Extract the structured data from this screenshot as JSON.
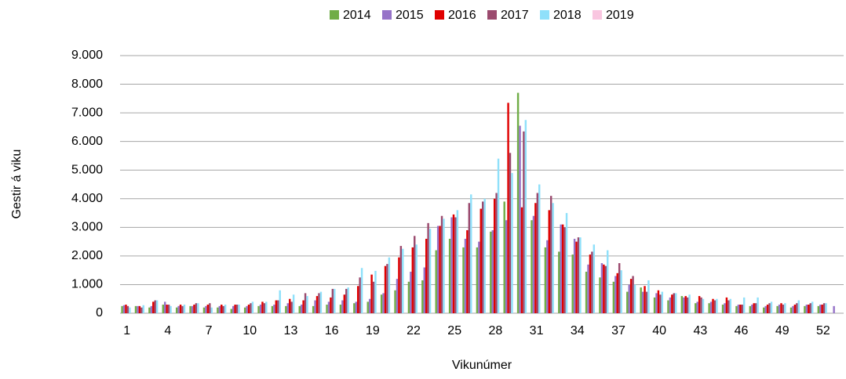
{
  "chart_data": {
    "type": "bar",
    "y_label": "Gestir á viku",
    "x_label": "Vikunúmer",
    "categories": [
      "1",
      null,
      null,
      "4",
      null,
      null,
      "7",
      null,
      null,
      "10",
      null,
      null,
      "13",
      null,
      null,
      "16",
      null,
      null,
      "19",
      null,
      null,
      "22",
      null,
      null,
      "25",
      null,
      null,
      "28",
      null,
      null,
      "31",
      null,
      null,
      "34",
      null,
      null,
      "37",
      null,
      null,
      "40",
      null,
      null,
      "43",
      null,
      null,
      "46",
      null,
      null,
      "49",
      null,
      null,
      "52",
      null
    ],
    "ylim": [
      0,
      9000
    ],
    "yticks": [
      0,
      {
        "value": 1000,
        "label": "1.000"
      },
      {
        "value": 2000,
        "label": "2.000"
      },
      {
        "value": 3000,
        "label": "3.000"
      },
      {
        "value": 4000,
        "label": "4.000"
      },
      {
        "value": 5000,
        "label": "5.000"
      },
      {
        "value": 6000,
        "label": "6.000"
      },
      {
        "value": 7000,
        "label": "7.000"
      },
      {
        "value": 8000,
        "label": "8.000"
      },
      {
        "value": 9000,
        "label": "9.000"
      }
    ],
    "grid": true,
    "legend": "top",
    "series": [
      {
        "name": "2014",
        "color": "#70ad47",
        "values": [
          250,
          250,
          200,
          300,
          200,
          250,
          200,
          200,
          150,
          200,
          250,
          250,
          250,
          250,
          250,
          300,
          300,
          350,
          400,
          650,
          800,
          1100,
          1150,
          2200,
          2600,
          2300,
          2300,
          2850,
          3900,
          7700,
          3250,
          2300,
          2150,
          2050,
          1450,
          1250,
          1100,
          750,
          900,
          550,
          450,
          600,
          350,
          350,
          300,
          250,
          250,
          200,
          250,
          200,
          250,
          250,
          null
        ]
      },
      {
        "name": "2015",
        "color": "#9673c8",
        "values": [
          280,
          250,
          250,
          400,
          250,
          250,
          250,
          250,
          250,
          250,
          300,
          300,
          350,
          300,
          450,
          400,
          450,
          400,
          500,
          700,
          1200,
          1450,
          1600,
          3050,
          3350,
          2600,
          2500,
          2900,
          3250,
          6550,
          3400,
          2550,
          3100,
          2600,
          1700,
          1750,
          1300,
          1000,
          750,
          700,
          550,
          550,
          400,
          400,
          350,
          300,
          300,
          250,
          300,
          250,
          300,
          300,
          250
        ]
      },
      {
        "name": "2016",
        "color": "#e00000",
        "values": [
          300,
          250,
          400,
          300,
          300,
          300,
          300,
          300,
          300,
          300,
          400,
          450,
          500,
          450,
          600,
          550,
          650,
          950,
          1350,
          1650,
          1950,
          2300,
          2600,
          3050,
          3450,
          2900,
          3650,
          4000,
          7350,
          3700,
          3850,
          3600,
          3100,
          2500,
          2050,
          1700,
          1400,
          1200,
          950,
          800,
          650,
          600,
          600,
          500,
          550,
          300,
          350,
          300,
          350,
          300,
          300,
          300,
          null
        ]
      },
      {
        "name": "2017",
        "color": "#9b4a6e",
        "values": [
          250,
          200,
          450,
          300,
          250,
          350,
          350,
          250,
          300,
          350,
          350,
          450,
          400,
          700,
          700,
          850,
          850,
          1250,
          1100,
          1720,
          2350,
          2700,
          3150,
          3400,
          3350,
          3850,
          3900,
          4200,
          5600,
          6350,
          4200,
          4100,
          3000,
          2650,
          2150,
          1650,
          1750,
          1300,
          750,
          650,
          700,
          550,
          550,
          450,
          450,
          300,
          350,
          350,
          300,
          350,
          350,
          350,
          null
        ]
      },
      {
        "name": "2018",
        "color": "#8fe0fa",
        "values": [
          200,
          280,
          450,
          250,
          300,
          350,
          200,
          300,
          300,
          400,
          400,
          800,
          650,
          600,
          750,
          850,
          900,
          1580,
          1480,
          1950,
          2250,
          2400,
          2950,
          3300,
          3600,
          4150,
          4000,
          5400,
          4900,
          6750,
          4500,
          3850,
          3500,
          2650,
          2400,
          2200,
          1500,
          1000,
          1150,
          750,
          700,
          650,
          500,
          500,
          500,
          550,
          550,
          400,
          350,
          450,
          400,
          350,
          null
        ]
      },
      {
        "name": "2019",
        "color": "#f9c6e0",
        "values": [
          null,
          null,
          null,
          null,
          null,
          null,
          null,
          null,
          null,
          null,
          null,
          null,
          null,
          null,
          null,
          null,
          null,
          null,
          null,
          null,
          null,
          null,
          null,
          null,
          null,
          null,
          null,
          null,
          null,
          null,
          null,
          null,
          null,
          null,
          null,
          null,
          null,
          null,
          null,
          null,
          null,
          null,
          null,
          null,
          null,
          null,
          null,
          null,
          null,
          null,
          null,
          null,
          null
        ]
      }
    ]
  }
}
